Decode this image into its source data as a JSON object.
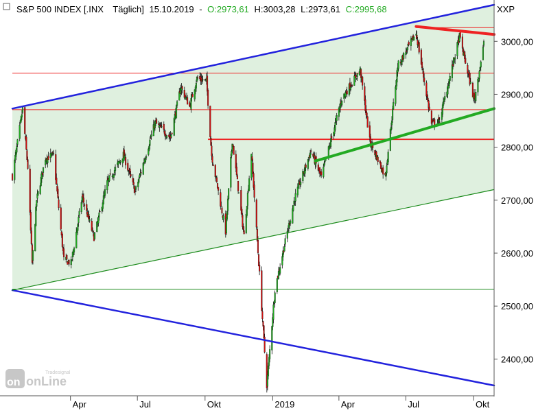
{
  "chart_data": {
    "type": "candlestick",
    "title": {
      "instrument": "S&P 500 INDEX [.INX",
      "interval": "Täglich]",
      "date": "15.10.2019",
      "sep": "-",
      "open": "O:2973,61",
      "high": "H:3003,28",
      "low": "L:2973,61",
      "close": "C:2995,68"
    },
    "currency_label": "XXP",
    "watermark": {
      "brand": "onLine",
      "sub": "Tradesignal"
    },
    "xlim": [
      "2018-01-12",
      "2019-10-29"
    ],
    "ylim": [
      2330,
      3070
    ],
    "y_ticks": [
      {
        "value": 2400,
        "label": "2400,00"
      },
      {
        "value": 2500,
        "label": "2500,00"
      },
      {
        "value": 2600,
        "label": "2600,00"
      },
      {
        "value": 2700,
        "label": "2700,00"
      },
      {
        "value": 2800,
        "label": "2800,00"
      },
      {
        "value": 2900,
        "label": "2900,00"
      },
      {
        "value": 3000,
        "label": "3000,00"
      }
    ],
    "x_ticks": [
      {
        "date": "2018-04-01",
        "label": "Apr"
      },
      {
        "date": "2018-07-01",
        "label": "Jul"
      },
      {
        "date": "2018-10-01",
        "label": "Okt"
      },
      {
        "date": "2019-01-01",
        "label": "2019"
      },
      {
        "date": "2019-04-01",
        "label": "Apr"
      },
      {
        "date": "2019-07-01",
        "label": "Jul"
      },
      {
        "date": "2019-10-01",
        "label": "Okt"
      }
    ],
    "price_path": [
      [
        "2018-01-12",
        2745
      ],
      [
        "2018-01-26",
        2872
      ],
      [
        "2018-02-02",
        2762
      ],
      [
        "2018-02-08",
        2581
      ],
      [
        "2018-02-14",
        2700
      ],
      [
        "2018-02-26",
        2780
      ],
      [
        "2018-03-09",
        2785
      ],
      [
        "2018-03-23",
        2588
      ],
      [
        "2018-04-02",
        2581
      ],
      [
        "2018-04-17",
        2706
      ],
      [
        "2018-05-03",
        2630
      ],
      [
        "2018-05-21",
        2733
      ],
      [
        "2018-06-12",
        2786
      ],
      [
        "2018-06-28",
        2716
      ],
      [
        "2018-07-25",
        2846
      ],
      [
        "2018-08-15",
        2818
      ],
      [
        "2018-08-29",
        2914
      ],
      [
        "2018-09-10",
        2877
      ],
      [
        "2018-09-20",
        2930
      ],
      [
        "2018-10-03",
        2925
      ],
      [
        "2018-10-10",
        2785
      ],
      [
        "2018-10-29",
        2641
      ],
      [
        "2018-11-07",
        2813
      ],
      [
        "2018-11-23",
        2633
      ],
      [
        "2018-12-03",
        2790
      ],
      [
        "2018-12-24",
        2351
      ],
      [
        "2019-01-04",
        2532
      ],
      [
        "2019-01-31",
        2704
      ],
      [
        "2019-02-22",
        2793
      ],
      [
        "2019-03-08",
        2743
      ],
      [
        "2019-04-05",
        2892
      ],
      [
        "2019-04-30",
        2946
      ],
      [
        "2019-05-13",
        2812
      ],
      [
        "2019-06-03",
        2744
      ],
      [
        "2019-06-20",
        2954
      ],
      [
        "2019-07-15",
        3015
      ],
      [
        "2019-08-05",
        2844
      ],
      [
        "2019-08-15",
        2847
      ],
      [
        "2019-09-12",
        3009
      ],
      [
        "2019-10-02",
        2888
      ],
      [
        "2019-10-15",
        2995
      ]
    ],
    "trendlines": [
      {
        "name": "upper-channel",
        "color": "#2222dd",
        "points": [
          [
            "2018-01-12",
            2873
          ],
          [
            "2019-10-29",
            3069
          ]
        ]
      },
      {
        "name": "lower-channel",
        "color": "#2222dd",
        "points": [
          [
            "2018-01-12",
            2530
          ],
          [
            "2019-10-29",
            2350
          ]
        ]
      },
      {
        "name": "green-support",
        "color": "#1a8a1a",
        "points": [
          [
            "2018-01-12",
            2530
          ],
          [
            "2019-10-29",
            2720
          ]
        ]
      },
      {
        "name": "green-bold-support",
        "color": "#22aa22",
        "points": [
          [
            "2019-02-28",
            2774
          ],
          [
            "2019-10-29",
            2873
          ]
        ]
      },
      {
        "name": "red-resistance",
        "color": "#ee2222",
        "points": [
          [
            "2019-07-15",
            3028
          ],
          [
            "2019-10-29",
            3013
          ]
        ]
      }
    ],
    "horizontal_lines": [
      {
        "name": "red-3026",
        "color": "#ee2222",
        "value": 3026,
        "from": "2019-07-15"
      },
      {
        "name": "red-2940",
        "color": "#ee2222",
        "value": 2940,
        "from": "2018-01-12"
      },
      {
        "name": "red-2871",
        "color": "#ee2222",
        "value": 2871,
        "from": "2018-01-12"
      },
      {
        "name": "red-2815",
        "color": "#ee2222",
        "value": 2815,
        "from": "2018-10-05"
      },
      {
        "name": "green-2532",
        "color": "#1a8a1a",
        "value": 2532,
        "from": "2018-01-12"
      }
    ],
    "channel_fill": "#dff0df"
  }
}
